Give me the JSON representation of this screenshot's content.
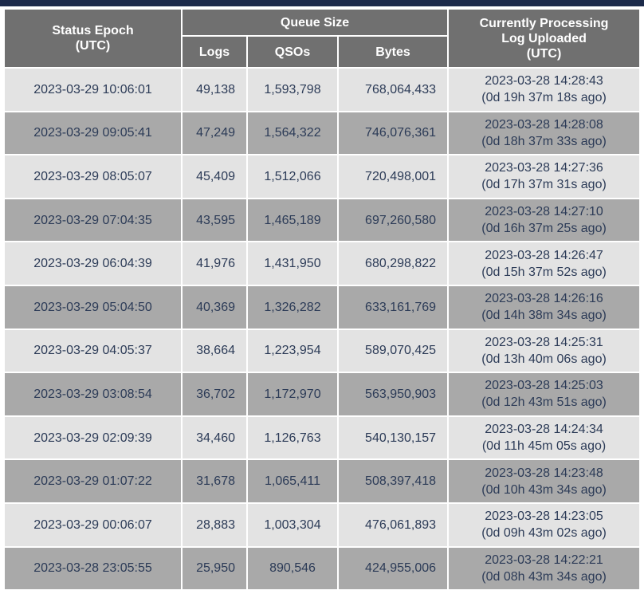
{
  "header": {
    "epoch": [
      "Status Epoch",
      "(UTC)"
    ],
    "queue_size": "Queue Size",
    "logs": "Logs",
    "qsos": "QSOs",
    "bytes": "Bytes",
    "processing": [
      "Currently Processing",
      "Log Uploaded",
      "(UTC)"
    ]
  },
  "table": {
    "rows": [
      [
        "2023-03-29 10:06:01",
        "49,138",
        "1,593,798",
        "768,064,433",
        "2023-03-28 14:28:43",
        "(0d 19h 37m 18s ago)"
      ],
      [
        "2023-03-29 09:05:41",
        "47,249",
        "1,564,322",
        "746,076,361",
        "2023-03-28 14:28:08",
        "(0d 18h 37m 33s ago)"
      ],
      [
        "2023-03-29 08:05:07",
        "45,409",
        "1,512,066",
        "720,498,001",
        "2023-03-28 14:27:36",
        "(0d 17h 37m 31s ago)"
      ],
      [
        "2023-03-29 07:04:35",
        "43,595",
        "1,465,189",
        "697,260,580",
        "2023-03-28 14:27:10",
        "(0d 16h 37m 25s ago)"
      ],
      [
        "2023-03-29 06:04:39",
        "41,976",
        "1,431,950",
        "680,298,822",
        "2023-03-28 14:26:47",
        "(0d 15h 37m 52s ago)"
      ],
      [
        "2023-03-29 05:04:50",
        "40,369",
        "1,326,282",
        "633,161,769",
        "2023-03-28 14:26:16",
        "(0d 14h 38m 34s ago)"
      ],
      [
        "2023-03-29 04:05:37",
        "38,664",
        "1,223,954",
        "589,070,425",
        "2023-03-28 14:25:31",
        "(0d 13h 40m 06s ago)"
      ],
      [
        "2023-03-29 03:08:54",
        "36,702",
        "1,172,970",
        "563,950,903",
        "2023-03-28 14:25:03",
        "(0d 12h 43m 51s ago)"
      ],
      [
        "2023-03-29 02:09:39",
        "34,460",
        "1,126,763",
        "540,130,157",
        "2023-03-28 14:24:34",
        "(0d 11h 45m 05s ago)"
      ],
      [
        "2023-03-29 01:07:22",
        "31,678",
        "1,065,411",
        "508,397,418",
        "2023-03-28 14:23:48",
        "(0d 10h 43m 34s ago)"
      ],
      [
        "2023-03-29 00:06:07",
        "28,883",
        "1,003,304",
        "476,061,893",
        "2023-03-28 14:23:05",
        "(0d 09h 43m 02s ago)"
      ],
      [
        "2023-03-28 23:05:55",
        "25,950",
        "890,546",
        "424,955,006",
        "2023-03-28 14:22:21",
        "(0d 08h 43m 34s ago)"
      ]
    ]
  }
}
